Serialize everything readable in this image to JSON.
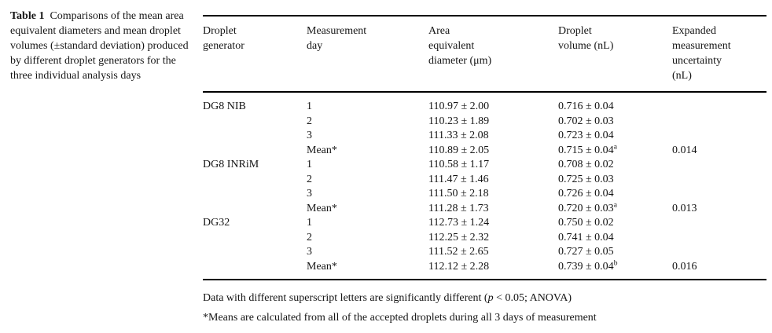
{
  "caption": {
    "label": "Table 1",
    "text": "Comparisons of the mean area equivalent diameters and mean droplet volumes (±standard deviation) produced by different droplet generators for the three individual analysis days"
  },
  "table": {
    "columns": [
      {
        "lines": [
          "Droplet",
          "generator"
        ]
      },
      {
        "lines": [
          "Measurement",
          "day"
        ]
      },
      {
        "lines": [
          "Area",
          "equivalent",
          "diameter (μm)"
        ]
      },
      {
        "lines": [
          "Droplet",
          "volume (nL)"
        ]
      },
      {
        "lines": [
          "Expanded",
          "measurement",
          "uncertainty",
          "(nL)"
        ]
      }
    ],
    "rows": [
      {
        "generator": "DG8 NIB",
        "day": "1",
        "diameter": "110.97 ± 2.00",
        "volume": "0.716 ± 0.04",
        "volume_sup": "",
        "uncertainty": ""
      },
      {
        "generator": "",
        "day": "2",
        "diameter": "110.23 ± 1.89",
        "volume": "0.702 ± 0.03",
        "volume_sup": "",
        "uncertainty": ""
      },
      {
        "generator": "",
        "day": "3",
        "diameter": "111.33 ± 2.08",
        "volume": "0.723 ± 0.04",
        "volume_sup": "",
        "uncertainty": ""
      },
      {
        "generator": "",
        "day": "Mean*",
        "diameter": "110.89 ± 2.05",
        "volume": "0.715 ± 0.04",
        "volume_sup": "a",
        "uncertainty": "0.014"
      },
      {
        "generator": "DG8 INRiM",
        "day": "1",
        "diameter": "110.58 ± 1.17",
        "volume": "0.708 ± 0.02",
        "volume_sup": "",
        "uncertainty": ""
      },
      {
        "generator": "",
        "day": "2",
        "diameter": "111.47 ± 1.46",
        "volume": "0.725 ± 0.03",
        "volume_sup": "",
        "uncertainty": ""
      },
      {
        "generator": "",
        "day": "3",
        "diameter": "111.50 ± 2.18",
        "volume": "0.726 ± 0.04",
        "volume_sup": "",
        "uncertainty": ""
      },
      {
        "generator": "",
        "day": "Mean*",
        "diameter": "111.28 ± 1.73",
        "volume": "0.720 ± 0.03",
        "volume_sup": "a",
        "uncertainty": "0.013"
      },
      {
        "generator": "DG32",
        "day": "1",
        "diameter": "112.73 ± 1.24",
        "volume": "0.750 ± 0.02",
        "volume_sup": "",
        "uncertainty": ""
      },
      {
        "generator": "",
        "day": "2",
        "diameter": "112.25 ± 2.32",
        "volume": "0.741 ± 0.04",
        "volume_sup": "",
        "uncertainty": ""
      },
      {
        "generator": "",
        "day": "3",
        "diameter": "111.52 ± 2.65",
        "volume": "0.727 ± 0.05",
        "volume_sup": "",
        "uncertainty": ""
      },
      {
        "generator": "",
        "day": "Mean*",
        "diameter": "112.12 ± 2.28",
        "volume": "0.739 ± 0.04",
        "volume_sup": "b",
        "uncertainty": "0.016"
      }
    ]
  },
  "footnotes": {
    "anova_pre": "Data with different superscript letters are significantly different (",
    "anova_italic": "p",
    "anova_post": " < 0.05; ANOVA)",
    "means": "*Means are calculated from all of the accepted droplets during all 3 days of measurement"
  }
}
